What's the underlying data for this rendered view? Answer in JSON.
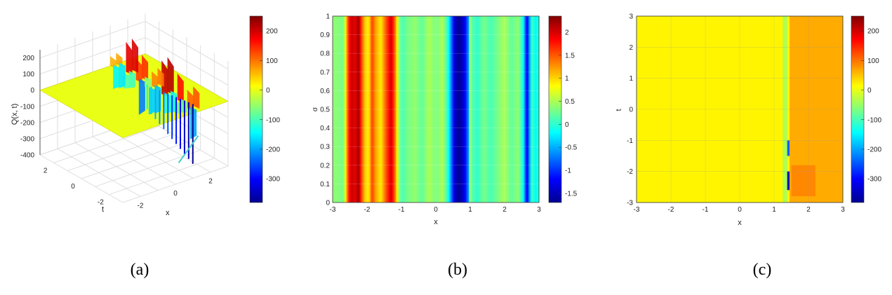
{
  "captions": [
    "(a)",
    "(b)",
    "(c)"
  ],
  "chart_data": [
    {
      "type": "surface3d",
      "panel": "(a)",
      "xlabel": "x",
      "ylabel": "t",
      "zlabel": "Q(x, t)",
      "x_ticks": [
        "-2",
        "0",
        "2"
      ],
      "t_ticks": [
        "-2",
        "0",
        "2"
      ],
      "z_ticks": [
        "200",
        "100",
        "0",
        "-100",
        "-200",
        "-300",
        "-400"
      ],
      "zlim": [
        -400,
        250
      ],
      "colorbar": {
        "min": -380,
        "max": 250,
        "ticks": [
          "200",
          "100",
          "0",
          "-100",
          "-200",
          "-300"
        ]
      },
      "surface": {
        "baseline": 0,
        "x_range": [
          -3,
          3
        ],
        "t_range": [
          -3,
          3
        ],
        "disturbance_x": [
          1.0,
          1.6
        ],
        "peak_max": 230,
        "trough_min": -380
      },
      "grid": true
    },
    {
      "type": "heatmap",
      "panel": "(b)",
      "xlabel": "x",
      "ylabel": "σ",
      "xlim": [
        -3,
        3
      ],
      "ylim": [
        0,
        1
      ],
      "x_ticks": [
        "-3",
        "-2",
        "-1",
        "0",
        "1",
        "2",
        "3"
      ],
      "y_ticks": [
        "0",
        "0.1",
        "0.2",
        "0.3",
        "0.4",
        "0.5",
        "0.6",
        "0.7",
        "0.8",
        "0.9",
        "1"
      ],
      "colorbar": {
        "min": -1.7,
        "max": 2.35,
        "ticks": [
          "2",
          "1.5",
          "1",
          "0.5",
          "0",
          "-0.5",
          "-1",
          "-1.5"
        ]
      },
      "profile_x": [
        -3,
        -2.7,
        -2.65,
        -2.55,
        -2.45,
        -2.35,
        -2.25,
        -2.15,
        -2.05,
        -1.95,
        -1.85,
        -1.75,
        -1.6,
        -1.45,
        -1.3,
        -1.2,
        -1.1,
        -1.0,
        -0.8,
        -0.6,
        -0.4,
        -0.2,
        0,
        0.2,
        0.35,
        0.45,
        0.55,
        0.65,
        0.75,
        0.85,
        0.95,
        1.0,
        1.05,
        1.2,
        1.4,
        1.6,
        1.8,
        2.0,
        2.2,
        2.4,
        2.55,
        2.6,
        2.65,
        2.72,
        2.8,
        2.9,
        3.0
      ],
      "profile_value": [
        0.4,
        0.3,
        0.6,
        1.6,
        2.1,
        1.9,
        2.25,
        1.5,
        1.0,
        0.9,
        1.6,
        1.2,
        0.9,
        1.5,
        2.0,
        1.5,
        0.6,
        0.1,
        0.3,
        0.4,
        0.2,
        0.5,
        0.3,
        0.5,
        0.0,
        -0.7,
        -1.4,
        -1.6,
        -1.5,
        -1.2,
        -0.6,
        0.5,
        0.2,
        0.0,
        0.3,
        0.1,
        0.3,
        0.5,
        0.2,
        0.4,
        -0.2,
        -0.8,
        -1.3,
        -0.6,
        0.1,
        -0.2,
        0.0
      ],
      "grid": true
    },
    {
      "type": "heatmap",
      "panel": "(c)",
      "xlabel": "x",
      "ylabel": "t",
      "xlim": [
        -3,
        3
      ],
      "ylim": [
        -3,
        3
      ],
      "x_ticks": [
        "-3",
        "-2",
        "-1",
        "0",
        "1",
        "2",
        "3"
      ],
      "y_ticks": [
        "-3",
        "-2",
        "-1",
        "0",
        "1",
        "2",
        "3"
      ],
      "colorbar": {
        "min": -380,
        "max": 250,
        "ticks": [
          "200",
          "100",
          "0",
          "-100",
          "-200",
          "-300"
        ]
      },
      "field": {
        "background": 20,
        "features": [
          {
            "x": [
              1.25,
              1.38
            ],
            "t": [
              -3,
              3
            ],
            "value": -40
          },
          {
            "x": [
              1.45,
              3.0
            ],
            "t": [
              -3,
              3
            ],
            "value": 70
          },
          {
            "x": [
              1.5,
              2.2
            ],
            "t": [
              -2.8,
              -1.8
            ],
            "value": 90
          },
          {
            "x": [
              1.38,
              1.45
            ],
            "t": [
              -1.5,
              -1.0
            ],
            "value": -250
          },
          {
            "x": [
              1.38,
              1.45
            ],
            "t": [
              -2.6,
              -2.0
            ],
            "value": -340
          }
        ]
      },
      "grid": true
    }
  ]
}
